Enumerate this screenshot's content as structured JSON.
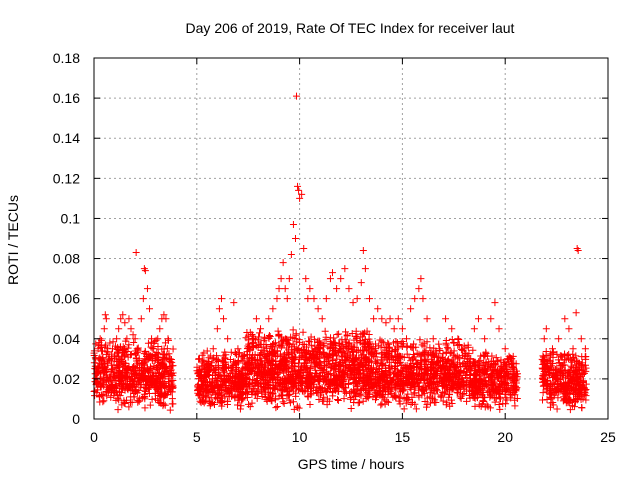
{
  "chart_data": {
    "type": "scatter",
    "title": "Day 206 of 2019, Rate Of TEC Index for receiver laut",
    "xlabel": "GPS time / hours",
    "ylabel": "ROTI / TECUs",
    "xlim": [
      0,
      25
    ],
    "ylim": [
      0,
      0.18
    ],
    "xticks": [
      0,
      5,
      10,
      15,
      20,
      25
    ],
    "xtick_labels": [
      "0",
      "5",
      "10",
      "15",
      "20",
      "25"
    ],
    "yticks": [
      0,
      0.02,
      0.04,
      0.06,
      0.08,
      0.1,
      0.12,
      0.14,
      0.16,
      0.18
    ],
    "ytick_labels": [
      "0",
      "0.02",
      "0.04",
      "0.06",
      "0.08",
      "0.1",
      "0.12",
      "0.14",
      "0.16",
      "0.18"
    ],
    "grid": true,
    "marker": "plus",
    "color": "#ff0000",
    "series": [
      {
        "points": [
          [
            0.1,
            0.025
          ],
          [
            0.2,
            0.035
          ],
          [
            0.3,
            0.04
          ],
          [
            0.4,
            0.03
          ],
          [
            0.5,
            0.045
          ],
          [
            0.55,
            0.052
          ],
          [
            0.6,
            0.05
          ],
          [
            0.7,
            0.03
          ],
          [
            0.8,
            0.02
          ],
          [
            0.9,
            0.035
          ],
          [
            1.0,
            0.03
          ],
          [
            1.1,
            0.04
          ],
          [
            1.2,
            0.045
          ],
          [
            1.3,
            0.05
          ],
          [
            1.4,
            0.052
          ],
          [
            1.5,
            0.048
          ],
          [
            1.6,
            0.04
          ],
          [
            1.7,
            0.05
          ],
          [
            1.8,
            0.045
          ],
          [
            1.9,
            0.042
          ],
          [
            2.0,
            0.04
          ],
          [
            2.05,
            0.083
          ],
          [
            2.1,
            0.035
          ],
          [
            2.2,
            0.03
          ],
          [
            2.3,
            0.05
          ],
          [
            2.4,
            0.06
          ],
          [
            2.45,
            0.075
          ],
          [
            2.5,
            0.074
          ],
          [
            2.6,
            0.065
          ],
          [
            2.7,
            0.055
          ],
          [
            2.8,
            0.04
          ],
          [
            2.9,
            0.035
          ],
          [
            3.0,
            0.03
          ],
          [
            3.1,
            0.04
          ],
          [
            3.2,
            0.045
          ],
          [
            3.3,
            0.05
          ],
          [
            3.4,
            0.052
          ],
          [
            3.5,
            0.05
          ],
          [
            3.6,
            0.04
          ],
          [
            3.7,
            0.03
          ],
          [
            5.1,
            0.03
          ],
          [
            5.3,
            0.028
          ],
          [
            5.5,
            0.025
          ],
          [
            5.8,
            0.035
          ],
          [
            6.0,
            0.045
          ],
          [
            6.1,
            0.055
          ],
          [
            6.2,
            0.06
          ],
          [
            6.3,
            0.05
          ],
          [
            6.5,
            0.04
          ],
          [
            6.8,
            0.058
          ],
          [
            7.0,
            0.035
          ],
          [
            7.3,
            0.03
          ],
          [
            7.5,
            0.025
          ],
          [
            7.7,
            0.04
          ],
          [
            7.9,
            0.05
          ],
          [
            8.1,
            0.045
          ],
          [
            8.3,
            0.04
          ],
          [
            8.5,
            0.05
          ],
          [
            8.7,
            0.055
          ],
          [
            8.9,
            0.06
          ],
          [
            9.0,
            0.065
          ],
          [
            9.1,
            0.07
          ],
          [
            9.2,
            0.078
          ],
          [
            9.3,
            0.065
          ],
          [
            9.4,
            0.06
          ],
          [
            9.5,
            0.07
          ],
          [
            9.6,
            0.082
          ],
          [
            9.7,
            0.097
          ],
          [
            9.8,
            0.09
          ],
          [
            9.85,
            0.161
          ],
          [
            9.9,
            0.116
          ],
          [
            9.95,
            0.114
          ],
          [
            10.0,
            0.11
          ],
          [
            10.1,
            0.112
          ],
          [
            10.2,
            0.085
          ],
          [
            10.3,
            0.07
          ],
          [
            10.4,
            0.06
          ],
          [
            10.5,
            0.065
          ],
          [
            10.7,
            0.06
          ],
          [
            10.9,
            0.055
          ],
          [
            11.1,
            0.05
          ],
          [
            11.3,
            0.06
          ],
          [
            11.5,
            0.07
          ],
          [
            11.6,
            0.073
          ],
          [
            11.8,
            0.065
          ],
          [
            12.0,
            0.07
          ],
          [
            12.2,
            0.075
          ],
          [
            12.4,
            0.065
          ],
          [
            12.6,
            0.058
          ],
          [
            12.8,
            0.06
          ],
          [
            13.0,
            0.068
          ],
          [
            13.1,
            0.084
          ],
          [
            13.2,
            0.075
          ],
          [
            13.4,
            0.06
          ],
          [
            13.6,
            0.05
          ],
          [
            13.8,
            0.055
          ],
          [
            14.0,
            0.05
          ],
          [
            14.2,
            0.048
          ],
          [
            14.4,
            0.05
          ],
          [
            14.6,
            0.045
          ],
          [
            14.8,
            0.05
          ],
          [
            15.0,
            0.045
          ],
          [
            15.2,
            0.04
          ],
          [
            15.4,
            0.055
          ],
          [
            15.6,
            0.06
          ],
          [
            15.8,
            0.065
          ],
          [
            15.9,
            0.07
          ],
          [
            16.0,
            0.06
          ],
          [
            16.2,
            0.05
          ],
          [
            16.5,
            0.04
          ],
          [
            16.8,
            0.035
          ],
          [
            17.1,
            0.05
          ],
          [
            17.4,
            0.045
          ],
          [
            17.7,
            0.04
          ],
          [
            18.0,
            0.035
          ],
          [
            18.5,
            0.045
          ],
          [
            18.7,
            0.05
          ],
          [
            19.0,
            0.04
          ],
          [
            19.3,
            0.05
          ],
          [
            19.5,
            0.058
          ],
          [
            19.7,
            0.045
          ],
          [
            20.0,
            0.035
          ],
          [
            20.3,
            0.03
          ],
          [
            21.9,
            0.04
          ],
          [
            22.0,
            0.045
          ],
          [
            22.3,
            0.035
          ],
          [
            22.6,
            0.04
          ],
          [
            22.9,
            0.05
          ],
          [
            23.1,
            0.045
          ],
          [
            23.3,
            0.035
          ],
          [
            23.45,
            0.053
          ],
          [
            23.5,
            0.085
          ],
          [
            23.55,
            0.084
          ],
          [
            23.7,
            0.04
          ],
          [
            23.9,
            0.035
          ]
        ]
      }
    ],
    "density_segments": [
      {
        "x_start": 0.0,
        "x_end": 3.85,
        "y_min": 0.004,
        "y_max": 0.04,
        "count": 650
      },
      {
        "x_start": 5.0,
        "x_end": 7.3,
        "y_min": 0.004,
        "y_max": 0.035,
        "count": 380
      },
      {
        "x_start": 7.3,
        "x_end": 13.5,
        "y_min": 0.004,
        "y_max": 0.045,
        "count": 1200
      },
      {
        "x_start": 13.5,
        "x_end": 18.3,
        "y_min": 0.004,
        "y_max": 0.04,
        "count": 800
      },
      {
        "x_start": 18.3,
        "x_end": 20.6,
        "y_min": 0.004,
        "y_max": 0.035,
        "count": 380
      },
      {
        "x_start": 21.8,
        "x_end": 23.95,
        "y_min": 0.004,
        "y_max": 0.035,
        "count": 380
      }
    ]
  }
}
